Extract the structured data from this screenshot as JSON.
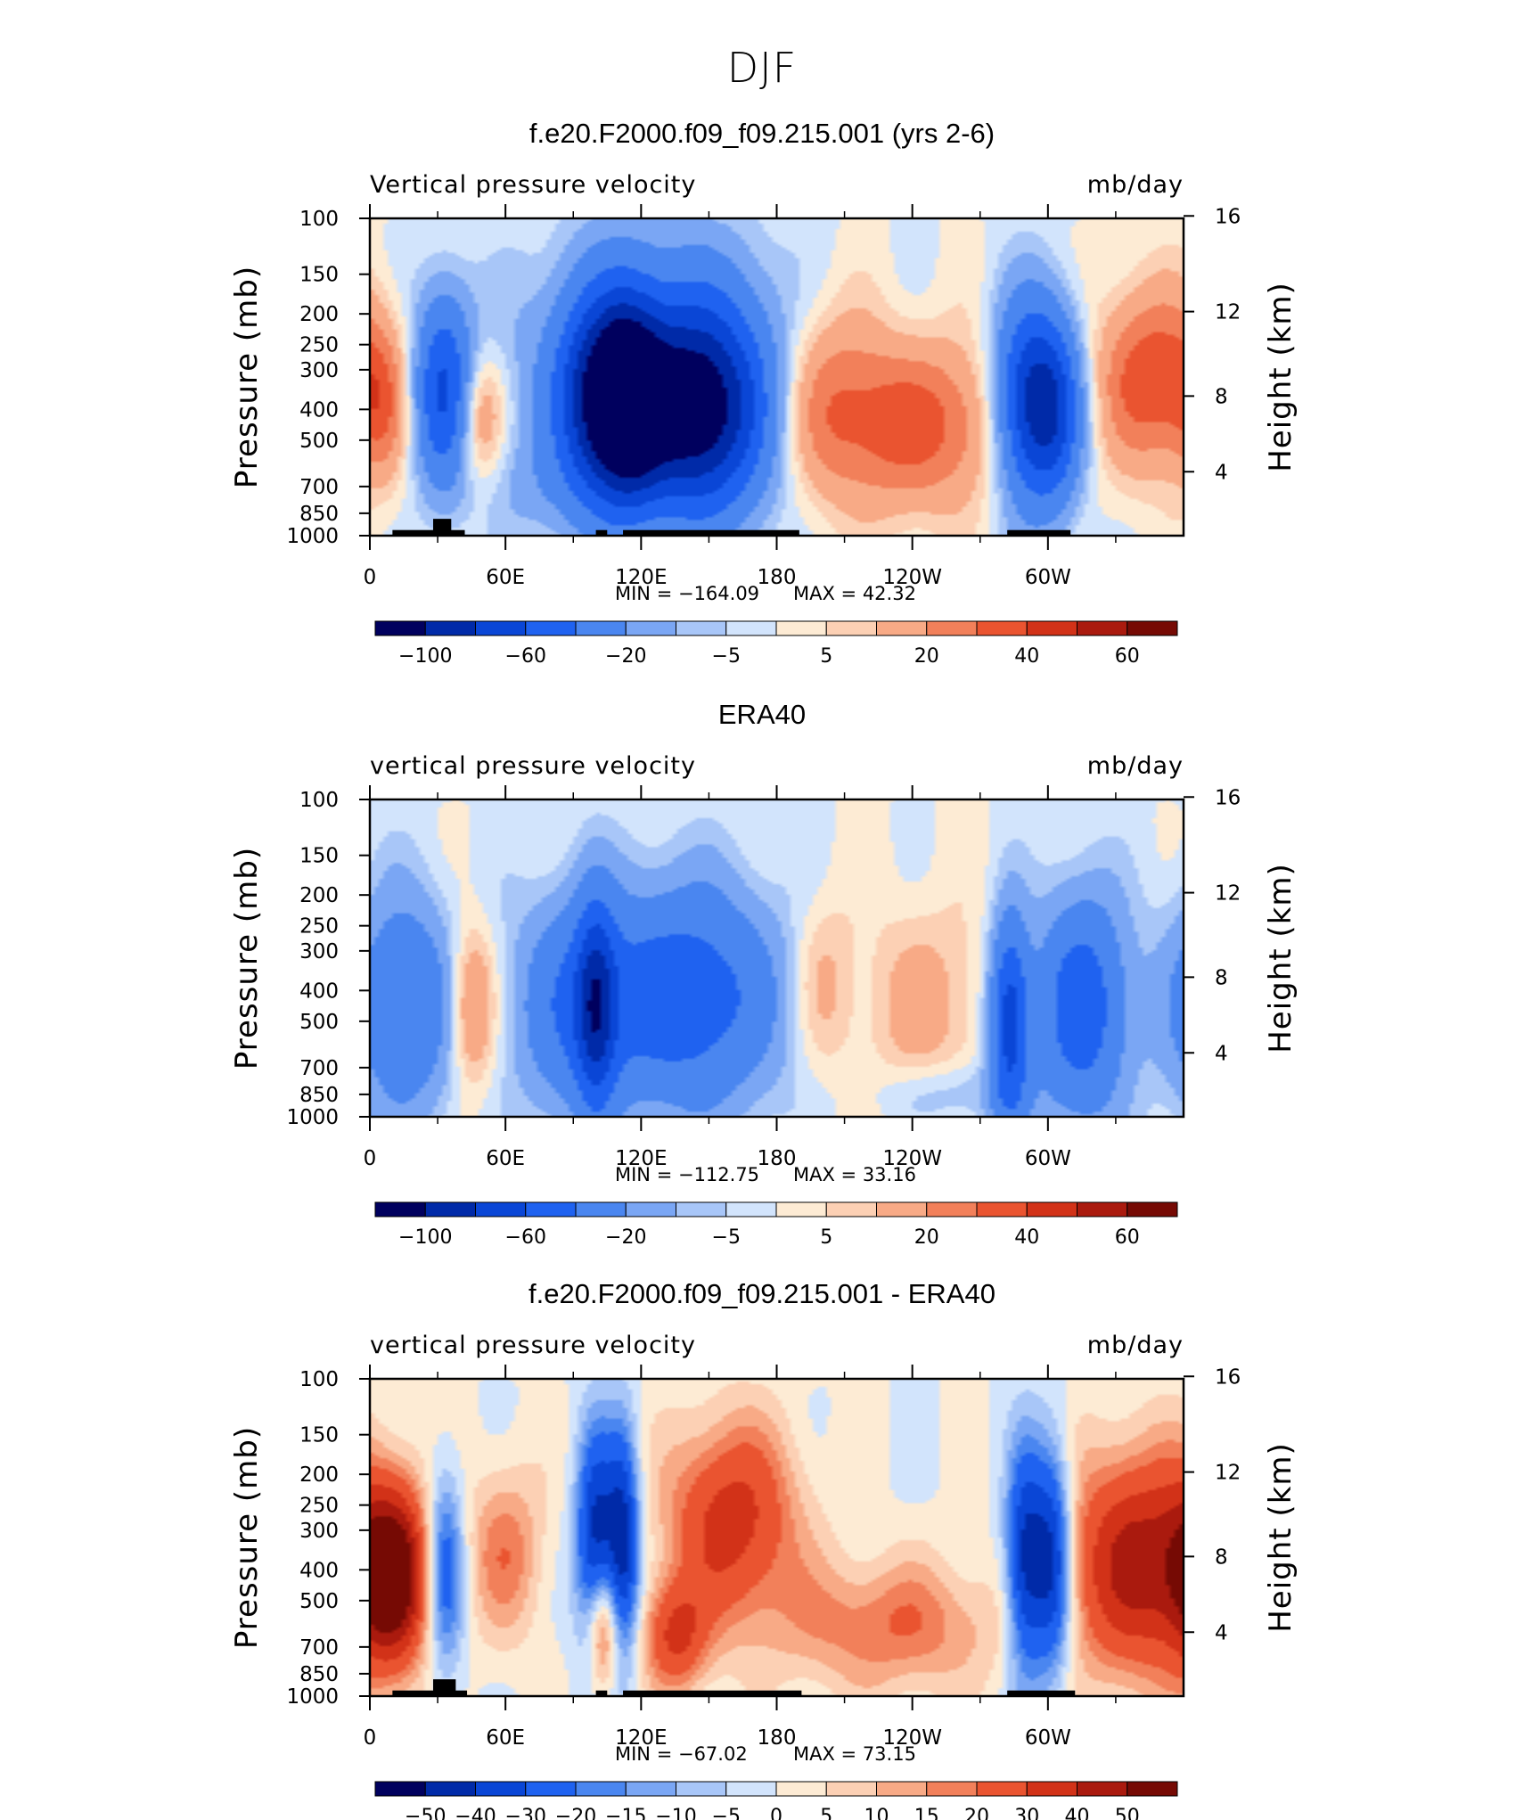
{
  "main_title": "DJF",
  "colors": {
    "land": "#000000",
    "palette_main": [
      "#00005e",
      "#002aa8",
      "#0a46d6",
      "#1f62f0",
      "#4a86f0",
      "#7aa6f4",
      "#a8c6f8",
      "#d2e4fc",
      "#fdebd4",
      "#fcd0b4",
      "#f8aa86",
      "#f2805a",
      "#ea5430",
      "#d23218",
      "#aa1a0e",
      "#760a04"
    ],
    "palette_diff": [
      "#00005e",
      "#002aa8",
      "#0a46d6",
      "#1f62f0",
      "#4a86f0",
      "#7aa6f4",
      "#a8c6f8",
      "#d2e4fc",
      "#fdebd4",
      "#fcd0b4",
      "#f8aa86",
      "#f2805a",
      "#ea5430",
      "#d23218",
      "#aa1a0e",
      "#760a04"
    ]
  },
  "chart_data": [
    {
      "type": "heatmap",
      "title": "f.e20.F2000.f09_f09.215.001 (yrs 2-6)",
      "variable": "Vertical pressure velocity",
      "units": "mb/day",
      "ylabel": "Pressure (mb)",
      "ylabel_right": "Height (km)",
      "x_ticks": [
        "0",
        "60E",
        "120E",
        "180",
        "120W",
        "60W"
      ],
      "y_ticks": [
        "100",
        "150",
        "200",
        "250",
        "300",
        "400",
        "500",
        "700",
        "850",
        "1000"
      ],
      "y_ticks_right": [
        "16",
        "12",
        "8",
        "4"
      ],
      "xlim": [
        0,
        360
      ],
      "ylim": [
        1000,
        100
      ],
      "min_label": "MIN  =  −164.09",
      "max_label": "MAX  =    42.32",
      "min": -164.09,
      "max": 42.32,
      "colorbar_labels": [
        "−100",
        "−60",
        "−20",
        "−5",
        "5",
        "20",
        "40",
        "60"
      ],
      "colorbar_levels": [
        -100,
        -80,
        -60,
        -40,
        -20,
        -10,
        -5,
        -2,
        2,
        5,
        10,
        20,
        30,
        40,
        50,
        60
      ],
      "features": [
        {
          "lon": 33,
          "p": 350,
          "v": -65,
          "wlon": 9,
          "hp": 0.85
        },
        {
          "lon": 47,
          "p": 420,
          "v": 28,
          "wlon": 8,
          "hp": 0.6
        },
        {
          "lon": 100,
          "p": 380,
          "v": -70,
          "wlon": 12,
          "hp": 0.9
        },
        {
          "lon": 115,
          "p": 380,
          "v": -80,
          "wlon": 10,
          "hp": 0.9
        },
        {
          "lon": 145,
          "p": 420,
          "v": -90,
          "wlon": 20,
          "hp": 0.9
        },
        {
          "lon": 130,
          "p": 300,
          "v": -45,
          "wlon": 38,
          "hp": 1.1
        },
        {
          "lon": 200,
          "p": 350,
          "v": 22,
          "wlon": 18,
          "hp": 0.9
        },
        {
          "lon": 240,
          "p": 450,
          "v": 35,
          "wlon": 30,
          "hp": 0.75
        },
        {
          "lon": 290,
          "p": 380,
          "v": -70,
          "wlon": 10,
          "hp": 0.9
        },
        {
          "lon": 303,
          "p": 400,
          "v": -60,
          "wlon": 9,
          "hp": 0.85
        },
        {
          "lon": 345,
          "p": 320,
          "v": 38,
          "wlon": 16,
          "hp": 0.8
        },
        {
          "lon": 5,
          "p": 380,
          "v": 22,
          "wlon": 8,
          "hp": 0.7
        },
        {
          "lon": 75,
          "p": 700,
          "v": -10,
          "wlon": 20,
          "hp": 0.5
        }
      ],
      "land": [
        [
          10,
          42
        ],
        [
          100,
          105
        ],
        [
          112,
          190
        ],
        [
          282,
          310
        ]
      ],
      "land_bumps": [
        [
          28,
          36
        ]
      ]
    },
    {
      "type": "heatmap",
      "title": "ERA40",
      "variable": "vertical pressure velocity",
      "units": "mb/day",
      "ylabel": "Pressure (mb)",
      "ylabel_right": "Height (km)",
      "x_ticks": [
        "0",
        "60E",
        "120E",
        "180",
        "120W",
        "60W"
      ],
      "y_ticks": [
        "100",
        "150",
        "200",
        "250",
        "300",
        "400",
        "500",
        "700",
        "850",
        "1000"
      ],
      "y_ticks_right": [
        "16",
        "12",
        "8",
        "4"
      ],
      "xlim": [
        0,
        360
      ],
      "ylim": [
        1000,
        100
      ],
      "min_label": "MIN  =  −112.75",
      "max_label": "MAX  =    33.16",
      "min": -112.75,
      "max": 33.16,
      "colorbar_labels": [
        "−100",
        "−60",
        "−20",
        "−5",
        "5",
        "20",
        "40",
        "60"
      ],
      "colorbar_levels": [
        -100,
        -80,
        -60,
        -40,
        -20,
        -10,
        -5,
        -2,
        2,
        5,
        10,
        20,
        30,
        40,
        50,
        60
      ],
      "features": [
        {
          "lon": 15,
          "p": 450,
          "v": -40,
          "wlon": 16,
          "hp": 1.0
        },
        {
          "lon": 45,
          "p": 450,
          "v": 28,
          "wlon": 7,
          "hp": 0.7
        },
        {
          "lon": 90,
          "p": 450,
          "v": -35,
          "wlon": 18,
          "hp": 1.0
        },
        {
          "lon": 100,
          "p": 450,
          "v": -60,
          "wlon": 6,
          "hp": 0.9
        },
        {
          "lon": 140,
          "p": 420,
          "v": -55,
          "wlon": 28,
          "hp": 1.0
        },
        {
          "lon": 200,
          "p": 380,
          "v": 14,
          "wlon": 10,
          "hp": 0.8
        },
        {
          "lon": 245,
          "p": 450,
          "v": 14,
          "wlon": 20,
          "hp": 0.9
        },
        {
          "lon": 283,
          "p": 500,
          "v": -70,
          "wlon": 6,
          "hp": 0.9
        },
        {
          "lon": 315,
          "p": 450,
          "v": -55,
          "wlon": 14,
          "hp": 1.0
        },
        {
          "lon": 260,
          "p": 850,
          "v": -12,
          "wlon": 25,
          "hp": 0.3
        }
      ],
      "land": [],
      "land_bumps": []
    },
    {
      "type": "heatmap",
      "title": "f.e20.F2000.f09_f09.215.001 - ERA40",
      "variable": "vertical pressure velocity",
      "units": "mb/day",
      "ylabel": "Pressure (mb)",
      "ylabel_right": "Height (km)",
      "x_ticks": [
        "0",
        "60E",
        "120E",
        "180",
        "120W",
        "60W"
      ],
      "y_ticks": [
        "100",
        "150",
        "200",
        "250",
        "300",
        "400",
        "500",
        "700",
        "850",
        "1000"
      ],
      "y_ticks_right": [
        "16",
        "12",
        "8",
        "4"
      ],
      "xlim": [
        0,
        360
      ],
      "ylim": [
        1000,
        100
      ],
      "min_label": "MIN  =  −67.02",
      "max_label": "MAX  =    73.15",
      "min": -67.02,
      "max": 73.15,
      "colorbar_labels": [
        "−50",
        "−40",
        "−30",
        "−20",
        "−15",
        "−10",
        "−5",
        "0",
        "5",
        "10",
        "15",
        "20",
        "30",
        "40",
        "50"
      ],
      "colorbar_levels": [
        -60,
        -50,
        -40,
        -30,
        -20,
        -15,
        -10,
        -5,
        0,
        5,
        10,
        15,
        20,
        30,
        40,
        50
      ],
      "features": [
        {
          "lon": 10,
          "p": 420,
          "v": 55,
          "wlon": 11,
          "hp": 0.8
        },
        {
          "lon": 33,
          "p": 400,
          "v": -30,
          "wlon": 6,
          "hp": 0.9
        },
        {
          "lon": 60,
          "p": 350,
          "v": 18,
          "wlon": 12,
          "hp": 0.8
        },
        {
          "lon": 100,
          "p": 330,
          "v": -45,
          "wlon": 6,
          "hp": 1.0
        },
        {
          "lon": 112,
          "p": 330,
          "v": -45,
          "wlon": 5,
          "hp": 1.0
        },
        {
          "lon": 103,
          "p": 600,
          "v": 35,
          "wlon": 5,
          "hp": 0.6
        },
        {
          "lon": 135,
          "p": 650,
          "v": 30,
          "wlon": 10,
          "hp": 0.5
        },
        {
          "lon": 160,
          "p": 280,
          "v": 35,
          "wlon": 20,
          "hp": 0.9
        },
        {
          "lon": 230,
          "p": 600,
          "v": 20,
          "wlon": 35,
          "hp": 0.6
        },
        {
          "lon": 290,
          "p": 380,
          "v": -45,
          "wlon": 6,
          "hp": 1.0
        },
        {
          "lon": 302,
          "p": 380,
          "v": -45,
          "wlon": 6,
          "hp": 1.0
        },
        {
          "lon": 340,
          "p": 380,
          "v": 45,
          "wlon": 22,
          "hp": 1.0
        }
      ],
      "land": [
        [
          10,
          43
        ],
        [
          100,
          105
        ],
        [
          112,
          191
        ],
        [
          282,
          312
        ]
      ],
      "land_bumps": [
        [
          28,
          38
        ]
      ]
    }
  ]
}
